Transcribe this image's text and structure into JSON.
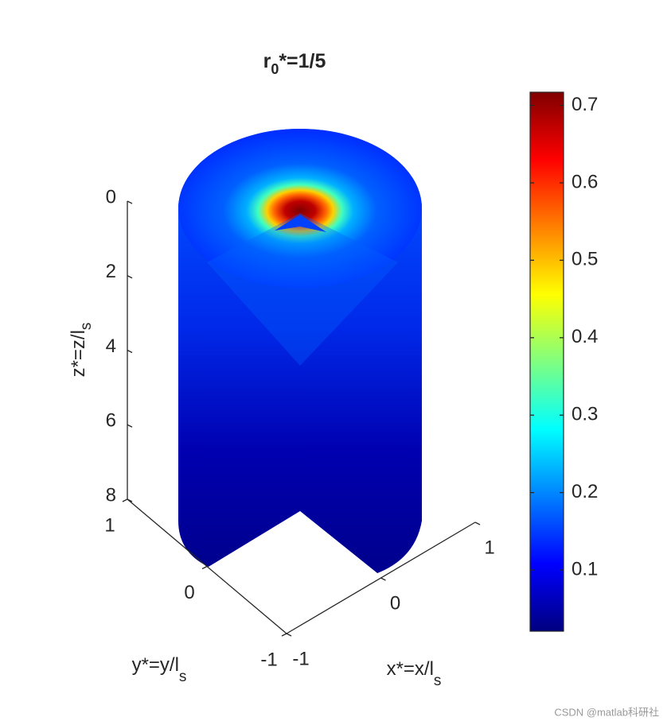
{
  "chart_data": {
    "type": "surface3d",
    "title": {
      "text": "r",
      "subscript": "0",
      "suffix": "*=1/5"
    },
    "xlabel": {
      "text": "x*=x/l",
      "subscript": "s"
    },
    "ylabel": {
      "text": "y*=y/l",
      "subscript": "s"
    },
    "zlabel": {
      "text": "z*=z/l",
      "subscript": "s"
    },
    "xlim": [
      -1,
      1
    ],
    "xticks": [
      -1,
      0,
      1
    ],
    "ylim": [
      -1,
      1
    ],
    "yticks": [
      -1,
      0,
      1
    ],
    "zlim": [
      0,
      8
    ],
    "zticks": [
      0,
      2,
      4,
      6,
      8
    ],
    "zdir": "reverse",
    "colormap": "jet",
    "clim": [
      0.021,
      0.717
    ],
    "cticks": [
      0.1,
      0.2,
      0.3,
      0.4,
      0.5,
      0.6,
      0.7
    ],
    "watermark": "CSDN @matlab科研社"
  }
}
